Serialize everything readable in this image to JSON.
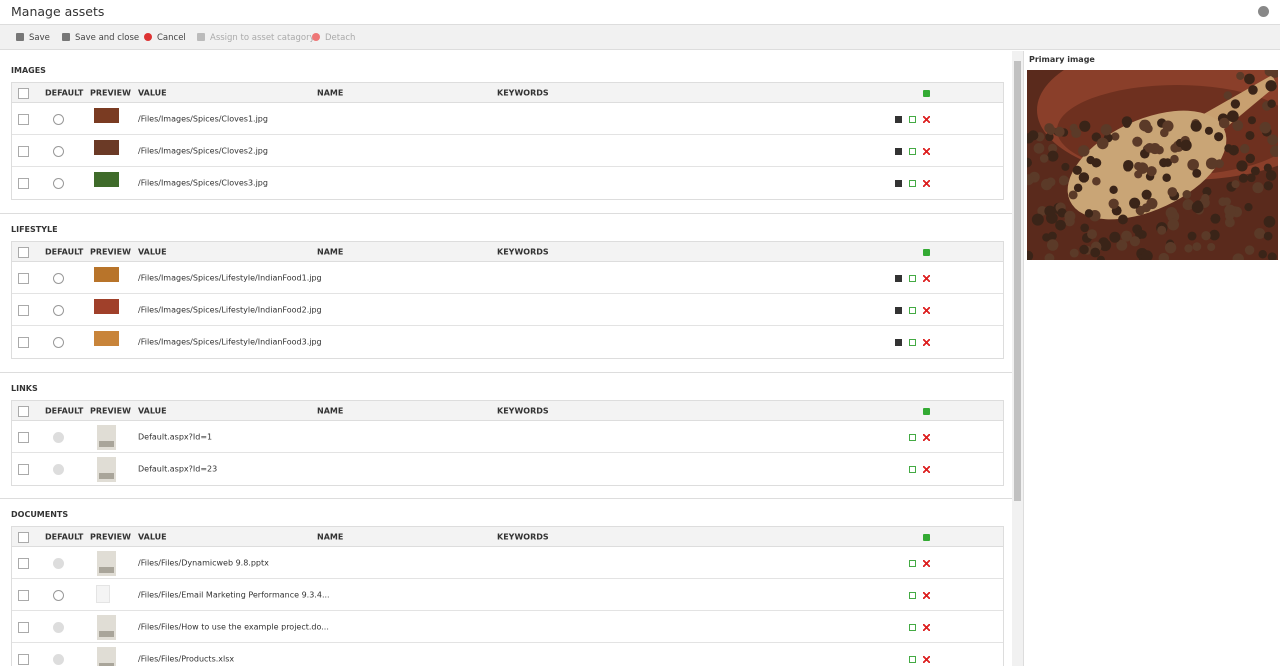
{
  "header": {
    "title": "Manage assets"
  },
  "toolbar": [
    "Save",
    "Save and close",
    "Cancel",
    "Assign to asset catagory",
    "Detach"
  ],
  "columns": [
    "DEFAULT",
    "PREVIEW",
    "VALUE",
    "NAME",
    "KEYWORDS"
  ],
  "sections": [
    {
      "title": "IMAGES",
      "rows": [
        "/Files/Images/Spices/Cloves1.jpg",
        "/Files/Images/Spices/Cloves2.jpg",
        "/Files/Images/Spices/Cloves3.jpg"
      ]
    },
    {
      "title": "LIFESTYLE",
      "rows": [
        "/Files/Images/Spices/Lifestyle/IndianFood1.jpg",
        "/Files/Images/Spices/Lifestyle/IndianFood2.jpg",
        "/Files/Images/Spices/Lifestyle/IndianFood3.jpg"
      ]
    },
    {
      "title": "LINKS",
      "rows": [
        "Default.aspx?Id=1",
        "Default.aspx?Id=23"
      ]
    },
    {
      "title": "DOCUMENTS",
      "rows": [
        "/Files/Files/Dynamicweb 9.8.pptx",
        "/Files/Files/Email Marketing Performance 9.3.4...",
        "/Files/Files/How to use the example project.do...",
        "/Files/Files/Products.xlsx"
      ]
    }
  ],
  "side": {
    "title": "Primary image"
  }
}
